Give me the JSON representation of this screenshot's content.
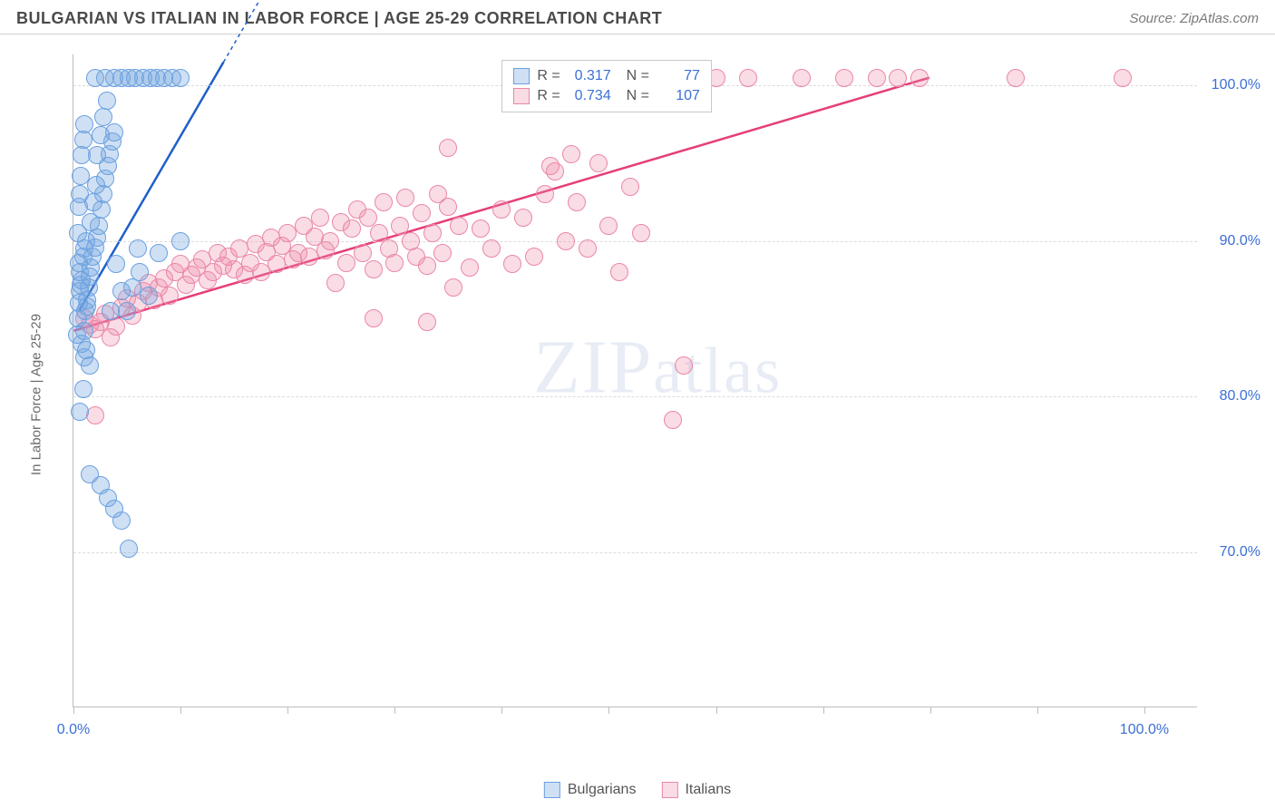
{
  "header": {
    "title": "BULGARIAN VS ITALIAN IN LABOR FORCE | AGE 25-29 CORRELATION CHART",
    "source": "Source: ZipAtlas.com"
  },
  "chart": {
    "type": "scatter",
    "ylabel": "In Labor Force | Age 25-29",
    "xlim": [
      0,
      105
    ],
    "ylim": [
      60,
      102
    ],
    "xtick_positions": [
      0,
      10,
      20,
      30,
      40,
      50,
      60,
      70,
      80,
      90,
      100
    ],
    "xtick_labels_shown": {
      "0": "0.0%",
      "100": "100.0%"
    },
    "ytick_positions": [
      70,
      80,
      90,
      100
    ],
    "ytick_labels": {
      "70": "70.0%",
      "80": "80.0%",
      "90": "90.0%",
      "100": "100.0%"
    },
    "background_color": "#ffffff",
    "grid_color": "#dcdcdc",
    "axis_color": "#bdbdbd",
    "tick_label_color": "#3b6fd6",
    "axis_label_color": "#6a6a6a",
    "marker_radius": 10,
    "marker_stroke_width": 1.5,
    "watermark_text": "ZIPatlas",
    "series": {
      "bulgarians": {
        "label": "Bulgarians",
        "fill": "rgba(118,165,224,0.35)",
        "stroke": "#6aa0e0",
        "trend": {
          "x1": 0.5,
          "y1": 85.5,
          "x2": 14,
          "y2": 101.5,
          "color": "#1f5fc9",
          "width": 2.5,
          "dash_tail": true
        },
        "points": [
          [
            0.4,
            85.0
          ],
          [
            0.5,
            86.0
          ],
          [
            0.6,
            86.8
          ],
          [
            0.7,
            87.2
          ],
          [
            0.8,
            87.5
          ],
          [
            0.6,
            88.0
          ],
          [
            0.5,
            88.6
          ],
          [
            0.9,
            89.0
          ],
          [
            1.0,
            89.5
          ],
          [
            1.2,
            90.0
          ],
          [
            1.0,
            84.2
          ],
          [
            0.8,
            83.4
          ],
          [
            1.1,
            85.5
          ],
          [
            1.3,
            86.2
          ],
          [
            1.4,
            87.0
          ],
          [
            1.5,
            87.7
          ],
          [
            1.6,
            88.3
          ],
          [
            1.8,
            89.0
          ],
          [
            2.0,
            89.6
          ],
          [
            2.2,
            90.2
          ],
          [
            2.4,
            91.0
          ],
          [
            2.6,
            92.0
          ],
          [
            2.8,
            93.0
          ],
          [
            3.0,
            94.0
          ],
          [
            3.2,
            94.8
          ],
          [
            3.4,
            95.6
          ],
          [
            3.6,
            96.4
          ],
          [
            3.8,
            97.0
          ],
          [
            0.6,
            79.0
          ],
          [
            1.0,
            82.5
          ],
          [
            1.2,
            83.0
          ],
          [
            1.5,
            82.0
          ],
          [
            0.3,
            84.0
          ],
          [
            0.4,
            90.5
          ],
          [
            0.5,
            92.2
          ],
          [
            0.6,
            93.0
          ],
          [
            0.7,
            94.2
          ],
          [
            0.8,
            95.5
          ],
          [
            0.9,
            96.5
          ],
          [
            1.0,
            97.5
          ],
          [
            1.5,
            75.0
          ],
          [
            2.5,
            74.3
          ],
          [
            3.2,
            73.5
          ],
          [
            3.8,
            72.8
          ],
          [
            4.5,
            72.0
          ],
          [
            5.2,
            70.2
          ],
          [
            6.0,
            89.5
          ],
          [
            8.0,
            89.2
          ],
          [
            10.0,
            90.0
          ],
          [
            2.0,
            100.5
          ],
          [
            3.0,
            100.5
          ],
          [
            3.8,
            100.5
          ],
          [
            4.5,
            100.5
          ],
          [
            5.2,
            100.5
          ],
          [
            5.8,
            100.5
          ],
          [
            6.5,
            100.5
          ],
          [
            7.2,
            100.5
          ],
          [
            7.8,
            100.5
          ],
          [
            8.5,
            100.5
          ],
          [
            9.2,
            100.5
          ],
          [
            10.0,
            100.5
          ],
          [
            5.5,
            87.0
          ],
          [
            6.2,
            88.0
          ],
          [
            7.0,
            86.5
          ],
          [
            2.2,
            95.5
          ],
          [
            2.5,
            96.8
          ],
          [
            2.8,
            98.0
          ],
          [
            3.1,
            99.0
          ],
          [
            4.5,
            86.8
          ],
          [
            5.0,
            85.5
          ],
          [
            0.9,
            80.5
          ],
          [
            1.3,
            85.8
          ],
          [
            1.6,
            91.2
          ],
          [
            1.9,
            92.5
          ],
          [
            2.1,
            93.6
          ],
          [
            3.5,
            85.5
          ],
          [
            4.0,
            88.5
          ]
        ]
      },
      "italians": {
        "label": "Italians",
        "fill": "rgba(240,140,170,0.30)",
        "stroke": "#ea87a8",
        "trend": {
          "x1": 0,
          "y1": 84.2,
          "x2": 80,
          "y2": 100.5,
          "color": "#e63e7a",
          "width": 2.5
        },
        "points": [
          [
            1.0,
            85.0
          ],
          [
            1.5,
            84.6
          ],
          [
            2.0,
            84.3
          ],
          [
            2.5,
            84.8
          ],
          [
            3.0,
            85.3
          ],
          [
            3.5,
            83.8
          ],
          [
            4.0,
            84.5
          ],
          [
            4.5,
            85.7
          ],
          [
            5.0,
            86.3
          ],
          [
            5.5,
            85.2
          ],
          [
            6.0,
            86.0
          ],
          [
            6.5,
            86.8
          ],
          [
            7.0,
            87.3
          ],
          [
            7.5,
            86.2
          ],
          [
            8.0,
            87.0
          ],
          [
            8.5,
            87.6
          ],
          [
            9.0,
            86.5
          ],
          [
            9.5,
            88.0
          ],
          [
            10.0,
            88.5
          ],
          [
            10.5,
            87.2
          ],
          [
            11.0,
            87.8
          ],
          [
            11.5,
            88.3
          ],
          [
            12.0,
            88.8
          ],
          [
            12.5,
            87.5
          ],
          [
            13.0,
            88.0
          ],
          [
            13.5,
            89.2
          ],
          [
            14.0,
            88.4
          ],
          [
            14.5,
            89.0
          ],
          [
            15.0,
            88.2
          ],
          [
            15.5,
            89.5
          ],
          [
            16.0,
            87.8
          ],
          [
            16.5,
            88.6
          ],
          [
            17.0,
            89.8
          ],
          [
            17.5,
            88.0
          ],
          [
            18.0,
            89.3
          ],
          [
            18.5,
            90.2
          ],
          [
            19.0,
            88.5
          ],
          [
            19.5,
            89.7
          ],
          [
            20.0,
            90.5
          ],
          [
            20.5,
            88.8
          ],
          [
            21.0,
            89.2
          ],
          [
            21.5,
            91.0
          ],
          [
            22.0,
            89.0
          ],
          [
            22.5,
            90.3
          ],
          [
            23.0,
            91.5
          ],
          [
            23.5,
            89.4
          ],
          [
            24.0,
            90.0
          ],
          [
            24.5,
            87.3
          ],
          [
            25.0,
            91.2
          ],
          [
            25.5,
            88.6
          ],
          [
            26.0,
            90.8
          ],
          [
            26.5,
            92.0
          ],
          [
            27.0,
            89.2
          ],
          [
            27.5,
            91.5
          ],
          [
            28.0,
            88.2
          ],
          [
            28.5,
            90.5
          ],
          [
            29.0,
            92.5
          ],
          [
            29.5,
            89.5
          ],
          [
            30.0,
            88.6
          ],
          [
            30.5,
            91.0
          ],
          [
            31.0,
            92.8
          ],
          [
            31.5,
            90.0
          ],
          [
            32.0,
            89.0
          ],
          [
            32.5,
            91.8
          ],
          [
            33.0,
            88.4
          ],
          [
            33.5,
            90.5
          ],
          [
            34.0,
            93.0
          ],
          [
            34.5,
            89.2
          ],
          [
            35.0,
            92.2
          ],
          [
            35.5,
            87.0
          ],
          [
            36.0,
            91.0
          ],
          [
            37.0,
            88.3
          ],
          [
            38.0,
            90.8
          ],
          [
            39.0,
            89.5
          ],
          [
            40.0,
            92.0
          ],
          [
            41.0,
            88.5
          ],
          [
            42.0,
            91.5
          ],
          [
            43.0,
            89.0
          ],
          [
            44.0,
            93.0
          ],
          [
            45.0,
            94.5
          ],
          [
            46.0,
            90.0
          ],
          [
            47.0,
            92.5
          ],
          [
            48.0,
            89.5
          ],
          [
            49.0,
            95.0
          ],
          [
            50.0,
            91.0
          ],
          [
            51.0,
            88.0
          ],
          [
            52.0,
            93.5
          ],
          [
            53.0,
            90.5
          ],
          [
            54.0,
            100.5
          ],
          [
            56.0,
            78.5
          ],
          [
            57.0,
            82.0
          ],
          [
            58.0,
            100.5
          ],
          [
            60.0,
            100.5
          ],
          [
            63.0,
            100.5
          ],
          [
            68.0,
            100.5
          ],
          [
            72.0,
            100.5
          ],
          [
            75.0,
            100.5
          ],
          [
            77.0,
            100.5
          ],
          [
            79.0,
            100.5
          ],
          [
            88.0,
            100.5
          ],
          [
            98.0,
            100.5
          ],
          [
            35.0,
            96.0
          ],
          [
            33.0,
            84.8
          ],
          [
            28.0,
            85.0
          ],
          [
            2.0,
            78.8
          ],
          [
            44.5,
            94.8
          ],
          [
            46.5,
            95.6
          ]
        ]
      }
    },
    "stats_legend": {
      "rows": [
        {
          "series": "bulgarians",
          "r": "0.317",
          "n": "77"
        },
        {
          "series": "italians",
          "r": "0.734",
          "n": "107"
        }
      ],
      "r_label": "R =",
      "n_label": "N ="
    }
  }
}
